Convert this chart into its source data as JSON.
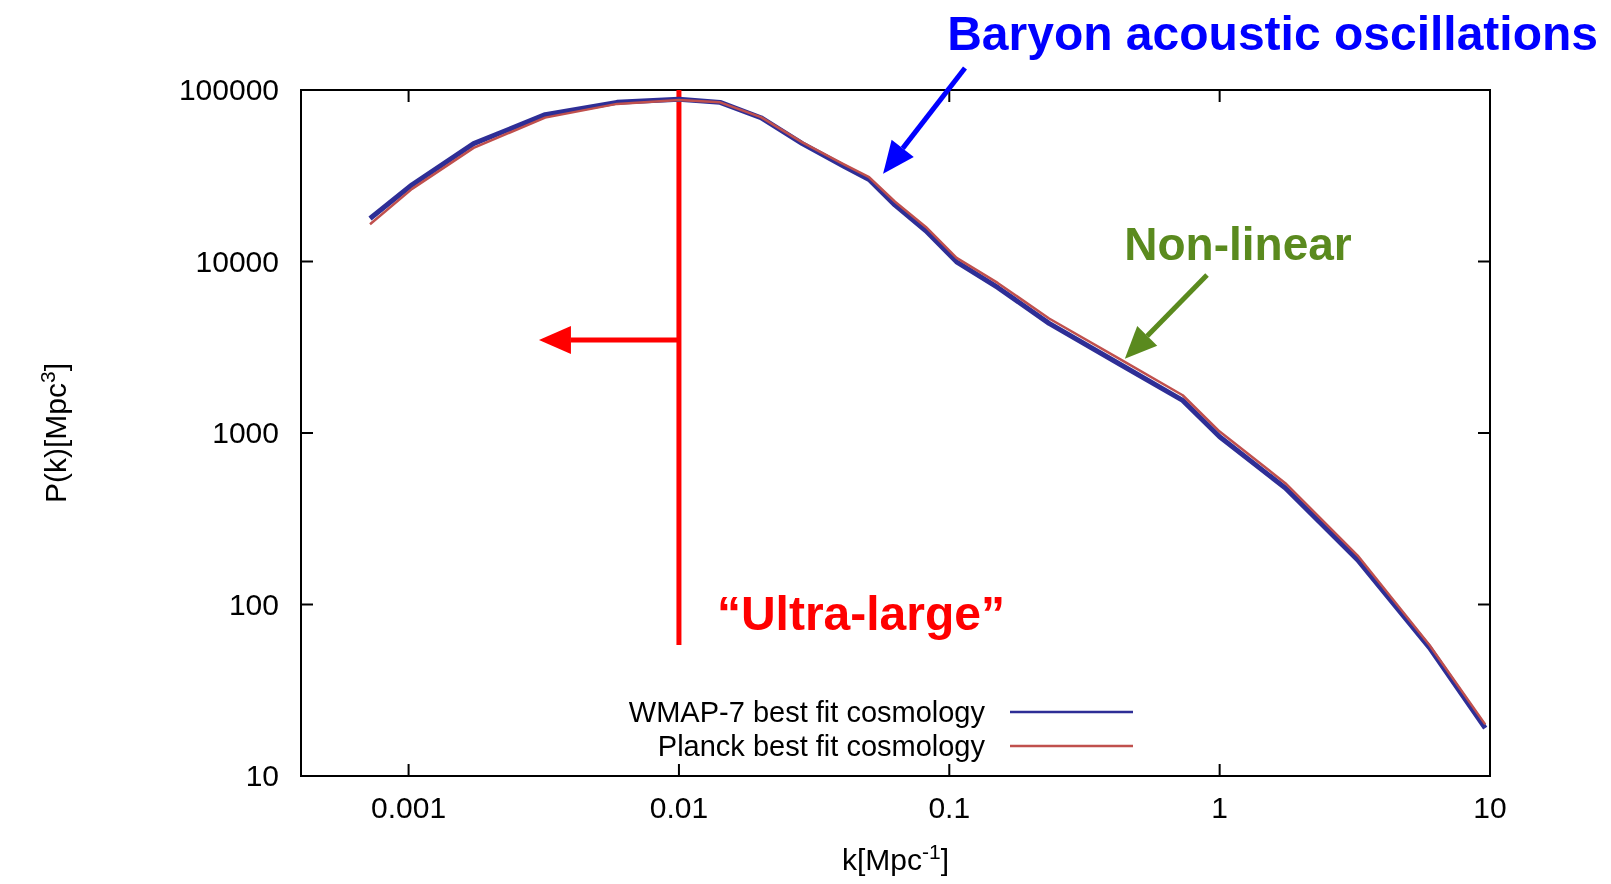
{
  "chart_data": {
    "type": "line",
    "xlabel": "k[Mpc$^{-1}$]",
    "ylabel": "P(k)[Mpc$^{3}$]",
    "log": "xy",
    "xlim": [
      0.0004,
      10
    ],
    "ylim": [
      10,
      100000
    ],
    "xticks": [
      0.001,
      0.01,
      0.1,
      1,
      10
    ],
    "yticks": [
      10,
      100,
      1000,
      10000,
      100000
    ],
    "grid": false,
    "legend": "bottom right",
    "line_style": "solid",
    "marker": "none",
    "x": [
      0.00072,
      0.00103,
      0.00174,
      0.0032,
      0.0059,
      0.01,
      0.0142,
      0.0201,
      0.0286,
      0.0406,
      0.0505,
      0.063,
      0.0819,
      0.1064,
      0.151,
      0.234,
      0.431,
      0.73,
      1,
      1.75,
      3.24,
      5.97,
      9.6
    ],
    "series": [
      {
        "name": "WMAP-7 best fit cosmology",
        "color": "#2e2e96",
        "values": [
          17800,
          28000,
          48700,
          71800,
          84700,
          88400,
          84700,
          68900,
          48700,
          36000,
          30100,
          21300,
          15100,
          9960,
          7060,
          4360,
          2500,
          1550,
          950,
          478,
          182,
          56,
          19
        ]
      },
      {
        "name": "Planck best fit cosmology",
        "color": "#c0504d",
        "values": [
          16500,
          26500,
          46000,
          69000,
          83000,
          87500,
          84700,
          69500,
          49500,
          37000,
          31000,
          22300,
          15900,
          10500,
          7500,
          4650,
          2680,
          1660,
          1020,
          510,
          193,
          58,
          20
        ]
      }
    ],
    "ref_lines": [
      {
        "axis": "x",
        "value": 0.01,
        "label": "“Ultra-large”",
        "color": "#ff0000"
      }
    ],
    "annotations": [
      {
        "text": "Baryon acoustic oscillations",
        "x": 0.055,
        "y": 30000
      },
      {
        "text": "Non-linear",
        "x": 0.431,
        "y": 2500
      }
    ]
  }
}
